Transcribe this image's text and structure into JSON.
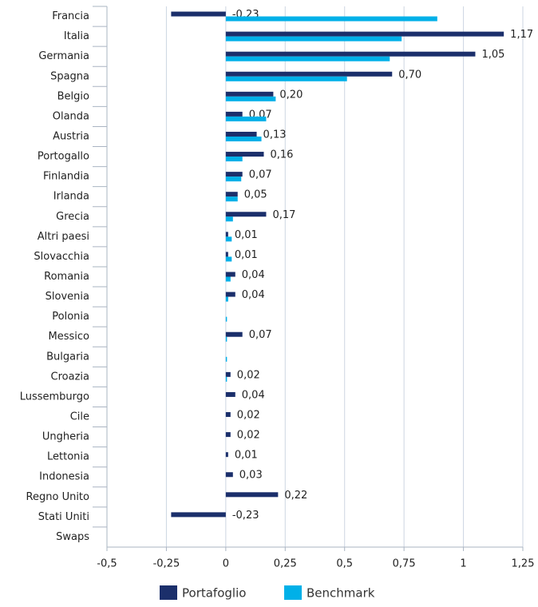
{
  "chart_data": {
    "type": "bar",
    "orientation": "horizontal",
    "categories": [
      "Francia",
      "Italia",
      "Germania",
      "Spagna",
      "Belgio",
      "Olanda",
      "Austria",
      "Portogallo",
      "Finlandia",
      "Irlanda",
      "Grecia",
      "Altri paesi",
      "Slovacchia",
      "Romania",
      "Slovenia",
      "Polonia",
      "Messico",
      "Bulgaria",
      "Croazia",
      "Lussemburgo",
      "Cile",
      "Ungheria",
      "Lettonia",
      "Indonesia",
      "Regno Unito",
      "Stati Uniti",
      "Swaps"
    ],
    "series": [
      {
        "name": "Portafoglio",
        "color": "#1b2f6b",
        "values": [
          -0.23,
          1.17,
          1.05,
          0.7,
          0.2,
          0.07,
          0.13,
          0.16,
          0.07,
          0.05,
          0.17,
          0.01,
          0.01,
          0.04,
          0.04,
          null,
          0.07,
          null,
          0.02,
          0.04,
          0.02,
          0.02,
          0.01,
          0.03,
          0.22,
          -0.23,
          null
        ],
        "value_labels": [
          "-0,23",
          "1,17",
          "1,05",
          "0,70",
          "0,20",
          "0,07",
          "0,13",
          "0,16",
          "0,07",
          "0,05",
          "0,17",
          "0,01",
          "0,01",
          "0,04",
          "0,04",
          null,
          "0,07",
          null,
          "0,02",
          "0,04",
          "0,02",
          "0,02",
          "0,01",
          "0,03",
          "0,22",
          "-0,23",
          null
        ]
      },
      {
        "name": "Benchmark",
        "color": "#00b0e8",
        "values": [
          0.89,
          0.74,
          0.69,
          0.51,
          0.21,
          0.17,
          0.15,
          0.07,
          0.065,
          0.05,
          0.03,
          0.025,
          0.025,
          0.02,
          0.01,
          0.005,
          0.005,
          0.005,
          0.005,
          0,
          0,
          0,
          0,
          0,
          0,
          0,
          0
        ]
      }
    ],
    "xlim": [
      -0.5,
      1.25
    ],
    "xticks": [
      {
        "value": -0.5,
        "label": "-0,5"
      },
      {
        "value": -0.25,
        "label": "-0,25"
      },
      0,
      {
        "value": 0.25,
        "label": "0,25"
      },
      {
        "value": 0.5,
        "label": "0,5"
      },
      {
        "value": 0.75,
        "label": "0,75"
      },
      1,
      {
        "value": 1.25,
        "label": "1,25"
      }
    ],
    "grid": true,
    "legend": "bottom"
  }
}
